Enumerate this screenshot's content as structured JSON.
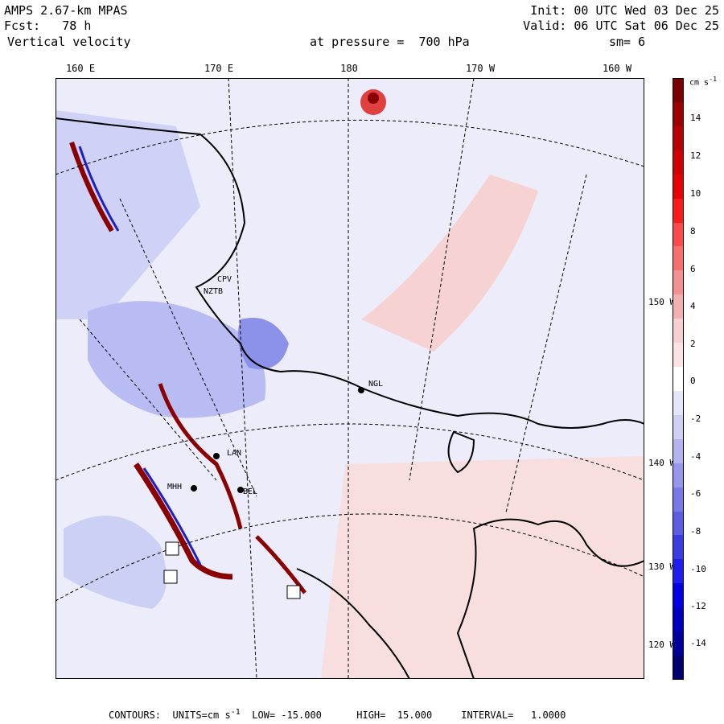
{
  "header": {
    "model": "AMPS 2.67-km MPAS",
    "fcst": "Fcst:   78 h",
    "field": "Vertical velocity",
    "level": "at pressure =  700 hPa",
    "init": "Init: 00 UTC Wed 03 Dec 25",
    "valid": "Valid: 06 UTC Sat 06 Dec 25",
    "smoothing": "sm= 6"
  },
  "longitude_labels": [
    "160 E",
    "170 E",
    "180",
    "170 W",
    "160 W"
  ],
  "latitude_labels": [
    "150 W",
    "140 W",
    "130 W",
    "120 W"
  ],
  "stations": [
    "CPV",
    "NZTB",
    "NGL",
    "LAN",
    "BEL",
    "MHH"
  ],
  "colorbar": {
    "units": "cm s",
    "units_exp": "-1",
    "ticks": [
      "14",
      "12",
      "10",
      "8",
      "6",
      "4",
      "2",
      "0",
      "-2",
      "-4",
      "-6",
      "-8",
      "-10",
      "-12",
      "-14"
    ],
    "colors": [
      "#7a0000",
      "#9c0000",
      "#b80000",
      "#d20000",
      "#ea0000",
      "#ff1a1a",
      "#ff4a4a",
      "#f86e6e",
      "#f49090",
      "#f4b0b0",
      "#f7cfcf",
      "#fbe3e3",
      "#ffffff",
      "#e6e6fb",
      "#d0d0f6",
      "#b3b3f2",
      "#9696ee",
      "#7878ea",
      "#5c5ce4",
      "#3c3ce6",
      "#1e1ef0",
      "#0000e6",
      "#0000c2",
      "#00009c",
      "#000074"
    ]
  },
  "footer": {
    "text": "CONTOURS:  UNITS=cm s",
    "exp": "-1",
    "rest": "  LOW= -15.000      HIGH=  15.000     INTERVAL=   1.0000"
  },
  "colors": {
    "ocean": "#ececfb",
    "updraft": "#f4b4b4",
    "downdraft": "#aeb2ee",
    "strong_up": "#8b0000",
    "strong_down": "#1e1ec8"
  }
}
